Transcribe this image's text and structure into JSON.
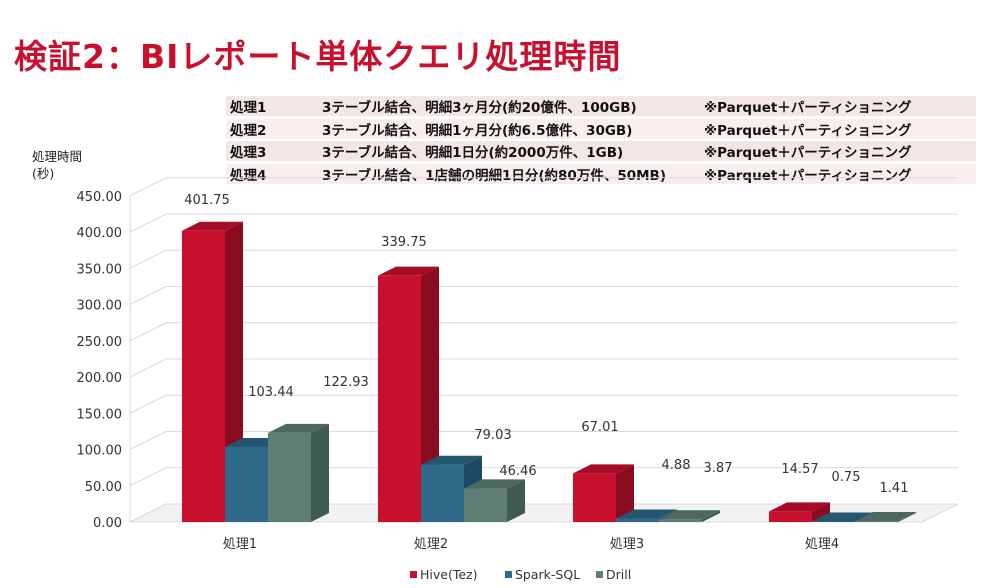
{
  "title": "検証2：BIレポート単体クエリ処理時間",
  "query_table": [
    {
      "name": "処理1",
      "desc": "3テーブル結合、明細3ヶ月分(約20億件、100GB)",
      "note": "※Parquet＋パーティショニング"
    },
    {
      "name": "処理2",
      "desc": "3テーブル結合、明細1ヶ月分(約6.5億件、30GB)",
      "note": "※Parquet＋パーティショニング"
    },
    {
      "name": "処理3",
      "desc": "3テーブル結合、明細1日分(約2000万件、1GB)",
      "note": "※Parquet＋パーティショニング"
    },
    {
      "name": "処理4",
      "desc": "3テーブル結合、1店舗の明細1日分(約80万件、50MB)",
      "note": "※Parquet＋パーティショニング"
    }
  ],
  "chart_data": {
    "type": "bar",
    "categories": [
      "処理1",
      "処理2",
      "処理3",
      "処理4"
    ],
    "series": [
      {
        "name": "Hive(Tez)",
        "values": [
          401.75,
          339.75,
          67.01,
          14.57
        ],
        "labels": [
          "401.75",
          "339.75",
          "67.01",
          "14.57"
        ],
        "color": "#c8102e",
        "side": "#8a0c20",
        "top": "#a50d27"
      },
      {
        "name": "Spark-SQL",
        "values": [
          103.44,
          79.03,
          4.88,
          0.75
        ],
        "labels": [
          "103.44",
          "79.03",
          "4.88",
          "0.75"
        ],
        "color": "#2f6a8a",
        "side": "#1d4a63",
        "top": "#24576f"
      },
      {
        "name": "Drill",
        "values": [
          122.93,
          46.46,
          3.87,
          1.41
        ],
        "labels": [
          "122.93",
          "46.46",
          "3.87",
          "1.41"
        ],
        "color": "#5f7e76",
        "side": "#3f5a53",
        "top": "#4c6861"
      }
    ],
    "yaxis_label_lines": [
      "処理時間",
      "(秒)"
    ],
    "ylim": [
      0,
      450
    ],
    "yticks": [
      0,
      50,
      100,
      150,
      200,
      250,
      300,
      350,
      400,
      450
    ],
    "ytick_labels": [
      "0.00",
      "50.00",
      "100.00",
      "150.00",
      "200.00",
      "250.00",
      "300.00",
      "350.00",
      "400.00",
      "450.00"
    ],
    "grid": true,
    "legend_position": "bottom-center"
  }
}
